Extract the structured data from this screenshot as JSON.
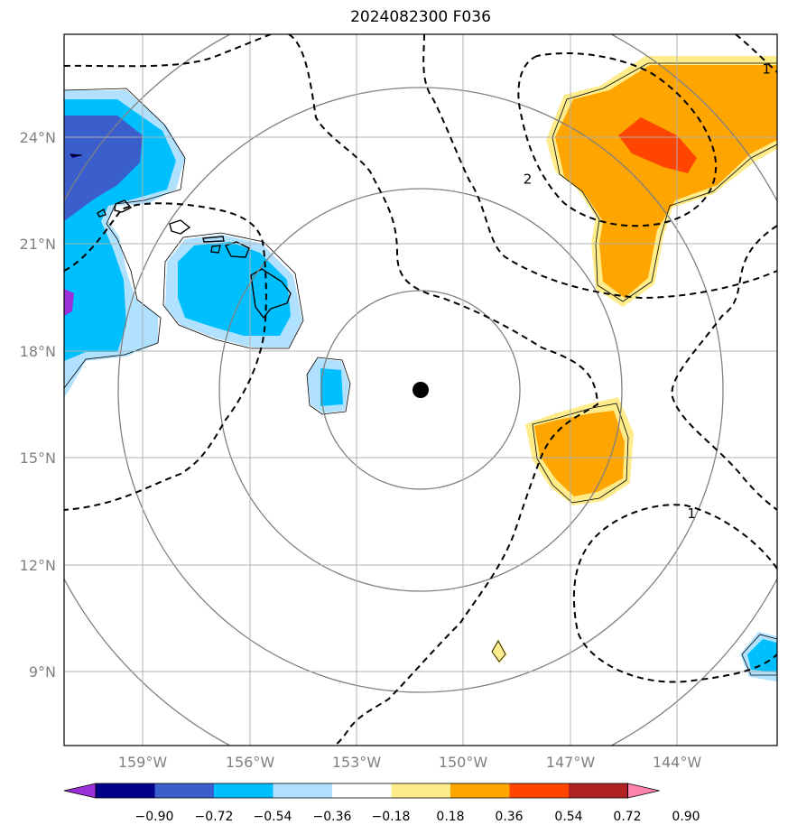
{
  "title": "2024082300 F036",
  "map": {
    "lon_range": [
      -161,
      -141
    ],
    "lat_range": [
      7,
      27
    ],
    "lon_ticks": [
      {
        "value": -159,
        "label": "159°W"
      },
      {
        "value": -156,
        "label": "156°W"
      },
      {
        "value": -153,
        "label": "153°W"
      },
      {
        "value": -150,
        "label": "150°W"
      },
      {
        "value": -147,
        "label": "147°W"
      },
      {
        "value": -144,
        "label": "144°W"
      }
    ],
    "lat_ticks": [
      {
        "value": 24,
        "label": "24°N"
      },
      {
        "value": 21,
        "label": "21°N"
      },
      {
        "value": 18,
        "label": "18°N"
      },
      {
        "value": 15,
        "label": "15°N"
      },
      {
        "value": 12,
        "label": "12°N"
      },
      {
        "value": 9,
        "label": "9°N"
      }
    ],
    "center_marker": {
      "lon": -151.2,
      "lat": 16.9
    },
    "contour_labels": [
      {
        "text": "2",
        "lon": -148.0,
        "lat": 22.8
      },
      {
        "text": "1",
        "lon": -141.3,
        "lat": 25.9
      },
      {
        "text": "1",
        "lon": -143.4,
        "lat": 13.4
      }
    ]
  },
  "colorbar": {
    "ticks": [
      "−0.90",
      "−0.72",
      "−0.54",
      "−0.36",
      "−0.18",
      "0.18",
      "0.36",
      "0.54",
      "0.72",
      "0.90"
    ],
    "colors": [
      "#9b30d9",
      "#00008b",
      "#3a5fcd",
      "#00bfff",
      "#b0e2ff",
      "#ffffff",
      "#ffec8b",
      "#ffa500",
      "#ff4500",
      "#b22222",
      "#ff82ab"
    ]
  }
}
